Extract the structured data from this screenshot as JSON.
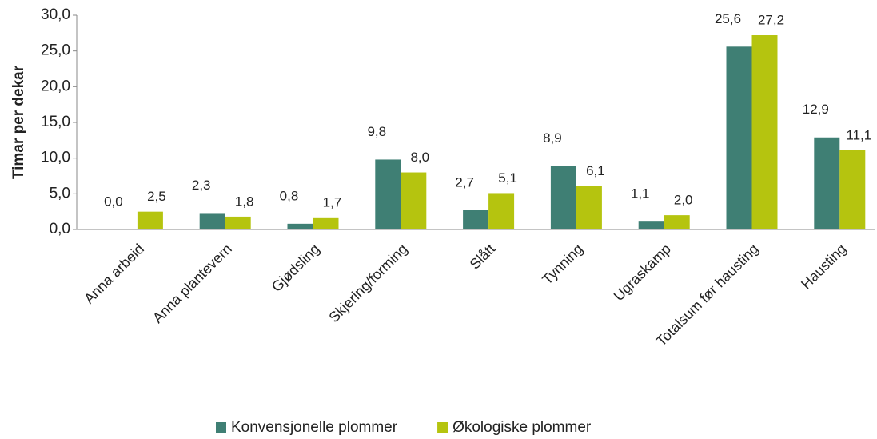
{
  "chart_data": {
    "type": "bar",
    "ylabel": "Timar per dekar",
    "categories": [
      "Anna arbeid",
      "Anna plantevern",
      "Gjødsling",
      "Skjering/forming",
      "Slått",
      "Tynning",
      "Ugraskamp",
      "Totalsum før hausting",
      "Hausting"
    ],
    "series": [
      {
        "name": "Konvensjonelle plommer",
        "color": "#3f7f74",
        "values": [
          0.0,
          2.3,
          0.8,
          9.8,
          2.7,
          8.9,
          1.1,
          25.6,
          12.9
        ],
        "value_labels": [
          "0,0",
          "2,3",
          "0,8",
          "9,8",
          "2,7",
          "8,9",
          "1,1",
          "25,6",
          "12,9"
        ]
      },
      {
        "name": "Økologiske plommer",
        "color": "#b5c40f",
        "values": [
          2.5,
          1.8,
          1.7,
          8.0,
          5.1,
          6.1,
          2.0,
          27.2,
          11.1
        ],
        "value_labels": [
          "2,5",
          "1,8",
          "1,7",
          "8,0",
          "5,1",
          "6,1",
          "2,0",
          "27,2",
          "11,1"
        ]
      }
    ],
    "ylim": [
      0,
      30
    ],
    "yticks": [
      {
        "value": 0,
        "label": "0,0"
      },
      {
        "value": 5,
        "label": "5,0"
      },
      {
        "value": 10,
        "label": "10,0"
      },
      {
        "value": 15,
        "label": "15,0"
      },
      {
        "value": 20,
        "label": "20,0"
      },
      {
        "value": 25,
        "label": "25,0"
      },
      {
        "value": 30,
        "label": "30,0"
      }
    ],
    "grid": false,
    "legend": "bottom"
  }
}
